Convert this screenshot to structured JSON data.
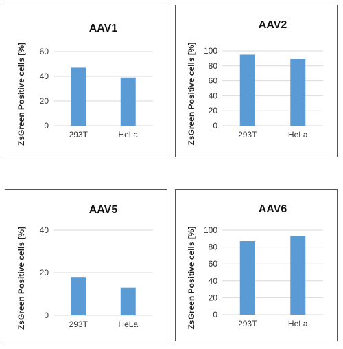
{
  "chart_data": [
    {
      "type": "bar",
      "title": "AAV1",
      "ylabel": "ZsGreen Positive cells [%]",
      "categories": [
        "293T",
        "HeLa"
      ],
      "values": [
        47,
        39
      ],
      "ylim": [
        0,
        60
      ],
      "yticks": [
        0,
        20,
        40,
        60
      ],
      "grid": true,
      "color": "#5b9bd5"
    },
    {
      "type": "bar",
      "title": "AAV2",
      "ylabel": "ZsGreen Positive cells [%]",
      "categories": [
        "293T",
        "HeLa"
      ],
      "values": [
        95,
        89
      ],
      "ylim": [
        0,
        100
      ],
      "yticks": [
        0,
        20,
        40,
        60,
        80,
        100
      ],
      "grid": true,
      "color": "#5b9bd5"
    },
    {
      "type": "bar",
      "title": "AAV5",
      "ylabel": "ZsGreen Positive cells [%]",
      "categories": [
        "293T",
        "HeLa"
      ],
      "values": [
        18,
        13
      ],
      "ylim": [
        0,
        40
      ],
      "yticks": [
        0,
        20,
        40
      ],
      "grid": true,
      "color": "#5b9bd5"
    },
    {
      "type": "bar",
      "title": "AAV6",
      "ylabel": "ZsGreen Positive cells [%]",
      "categories": [
        "293T",
        "HeLa"
      ],
      "values": [
        87,
        93
      ],
      "ylim": [
        0,
        100
      ],
      "yticks": [
        0,
        20,
        40,
        60,
        80,
        100
      ],
      "grid": true,
      "color": "#5b9bd5"
    }
  ]
}
